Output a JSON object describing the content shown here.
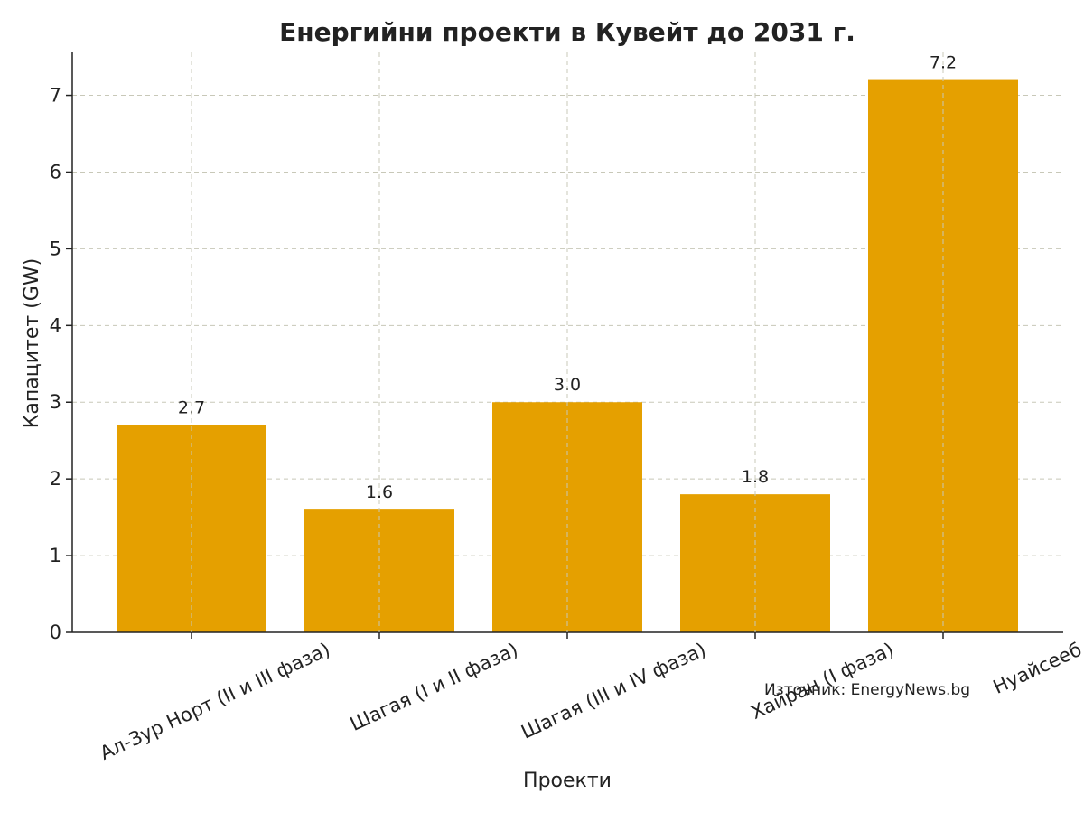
{
  "chart_data": {
    "type": "bar",
    "title": "Енергийни проекти в Кувейт до 2031 г.",
    "xlabel": "Проекти",
    "ylabel": "Капацитет (GW)",
    "categories": [
      "Ал-Зур Норт (II и III фаза)",
      "Шагая (I и II фаза)",
      "Шагая (III и IV фаза)",
      "Хайран (I фаза)",
      "Нуайсееб"
    ],
    "values": [
      2.7,
      1.6,
      3.0,
      1.8,
      7.2
    ],
    "data_labels": [
      "2.7",
      "1.6",
      "3.0",
      "1.8",
      "7.2"
    ],
    "yticks": [
      "0",
      "1",
      "2",
      "3",
      "4",
      "5",
      "6",
      "7"
    ],
    "ylim": [
      0,
      7.56
    ],
    "grid": true,
    "bar_color": "#e5a000",
    "annotation": "Източник: EnergyNews.bg"
  }
}
